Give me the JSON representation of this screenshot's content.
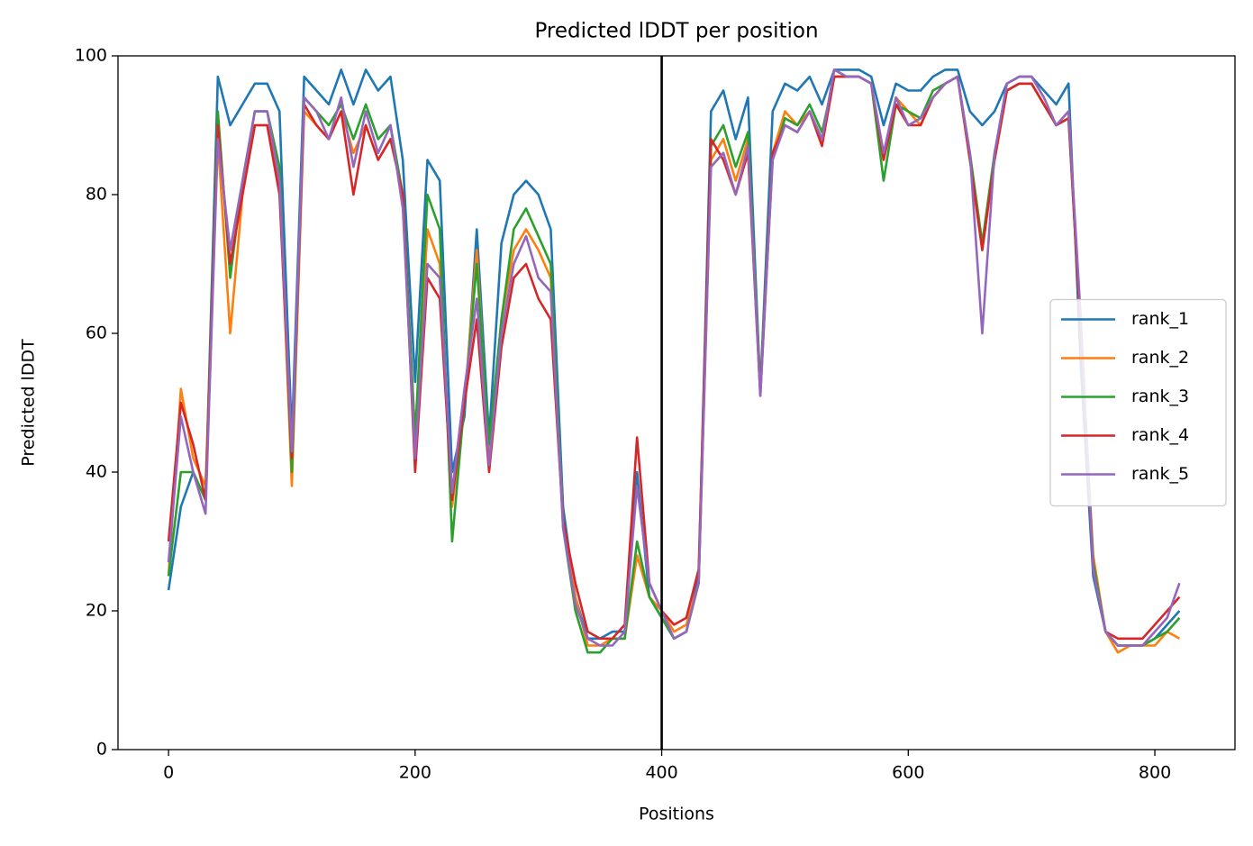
{
  "chart_data": {
    "type": "line",
    "title": "Predicted lDDT per position",
    "x_label": "Positions",
    "y_label": "Predicted lDDT",
    "x": [
      0,
      10,
      20,
      30,
      40,
      50,
      60,
      70,
      80,
      90,
      100,
      110,
      120,
      130,
      140,
      150,
      160,
      170,
      180,
      190,
      200,
      210,
      220,
      230,
      240,
      250,
      260,
      270,
      280,
      290,
      300,
      310,
      320,
      330,
      340,
      350,
      360,
      370,
      380,
      390,
      400,
      410,
      420,
      430,
      440,
      450,
      460,
      470,
      480,
      490,
      500,
      510,
      520,
      530,
      540,
      550,
      560,
      570,
      580,
      590,
      600,
      610,
      620,
      630,
      640,
      650,
      660,
      670,
      680,
      690,
      700,
      710,
      720,
      730,
      740,
      750,
      760,
      770,
      780,
      790,
      800,
      810,
      820
    ],
    "series": [
      {
        "name": "rank_1",
        "color": "#1f77b4",
        "values": [
          23,
          35,
          40,
          36,
          97,
          90,
          93,
          96,
          96,
          92,
          45,
          97,
          95,
          93,
          98,
          93,
          98,
          95,
          97,
          85,
          53,
          85,
          82,
          40,
          48,
          75,
          45,
          73,
          80,
          82,
          80,
          75,
          35,
          22,
          16,
          16,
          17,
          17,
          40,
          22,
          19,
          16,
          17,
          25,
          92,
          95,
          88,
          94,
          52,
          92,
          96,
          95,
          97,
          93,
          98,
          98,
          98,
          97,
          90,
          96,
          95,
          95,
          97,
          98,
          98,
          92,
          90,
          92,
          96,
          97,
          97,
          95,
          93,
          96,
          55,
          25,
          17,
          15,
          15,
          15,
          16,
          18,
          20
        ]
      },
      {
        "name": "rank_2",
        "color": "#ff7f0e",
        "values": [
          25,
          52,
          42,
          38,
          88,
          60,
          80,
          90,
          90,
          82,
          38,
          92,
          90,
          88,
          92,
          86,
          90,
          85,
          88,
          80,
          45,
          75,
          70,
          35,
          50,
          72,
          42,
          62,
          72,
          75,
          72,
          68,
          33,
          22,
          15,
          15,
          16,
          16,
          28,
          22,
          20,
          17,
          18,
          24,
          85,
          88,
          82,
          88,
          52,
          86,
          92,
          90,
          92,
          88,
          98,
          97,
          97,
          96,
          85,
          94,
          92,
          90,
          94,
          96,
          97,
          85,
          72,
          85,
          95,
          96,
          96,
          93,
          90,
          92,
          60,
          28,
          17,
          14,
          15,
          15,
          15,
          17,
          16
        ]
      },
      {
        "name": "rank_3",
        "color": "#2ca02c",
        "values": [
          25,
          40,
          40,
          36,
          92,
          68,
          82,
          92,
          92,
          84,
          40,
          94,
          92,
          90,
          93,
          88,
          93,
          88,
          90,
          80,
          45,
          80,
          75,
          30,
          50,
          70,
          44,
          62,
          75,
          78,
          74,
          70,
          32,
          20,
          14,
          14,
          16,
          16,
          30,
          22,
          19,
          16,
          17,
          24,
          87,
          90,
          84,
          89,
          52,
          85,
          91,
          90,
          93,
          89,
          97,
          97,
          97,
          96,
          82,
          93,
          92,
          91,
          95,
          96,
          97,
          86,
          73,
          86,
          95,
          96,
          96,
          93,
          90,
          91,
          60,
          27,
          17,
          15,
          15,
          15,
          16,
          17,
          19
        ]
      },
      {
        "name": "rank_4",
        "color": "#d62728",
        "values": [
          30,
          50,
          44,
          36,
          90,
          70,
          80,
          90,
          90,
          80,
          42,
          93,
          90,
          88,
          92,
          80,
          90,
          85,
          88,
          80,
          40,
          68,
          65,
          36,
          50,
          62,
          40,
          58,
          68,
          70,
          65,
          62,
          33,
          24,
          17,
          16,
          16,
          18,
          45,
          24,
          20,
          18,
          19,
          26,
          88,
          85,
          80,
          86,
          51,
          86,
          90,
          89,
          92,
          87,
          97,
          97,
          97,
          96,
          85,
          93,
          90,
          90,
          94,
          96,
          97,
          85,
          72,
          85,
          95,
          96,
          96,
          93,
          90,
          91,
          60,
          26,
          17,
          16,
          16,
          16,
          18,
          20,
          22
        ]
      },
      {
        "name": "rank_5",
        "color": "#9467bd",
        "values": [
          27,
          48,
          40,
          34,
          88,
          72,
          82,
          92,
          92,
          82,
          43,
          94,
          92,
          88,
          94,
          84,
          92,
          86,
          90,
          78,
          42,
          70,
          68,
          37,
          52,
          65,
          41,
          60,
          70,
          74,
          68,
          66,
          32,
          21,
          16,
          15,
          15,
          17,
          38,
          24,
          20,
          16,
          17,
          24,
          84,
          86,
          80,
          87,
          51,
          85,
          90,
          89,
          92,
          88,
          98,
          97,
          97,
          96,
          86,
          94,
          90,
          91,
          94,
          96,
          97,
          86,
          60,
          86,
          96,
          97,
          97,
          94,
          90,
          92,
          62,
          26,
          17,
          15,
          15,
          15,
          17,
          19,
          24
        ]
      }
    ],
    "vlines": [
      400
    ],
    "vline_color": "#000000",
    "xlim": [
      -41,
      865
    ],
    "xticks": [
      0,
      200,
      400,
      600,
      800
    ],
    "ylim": [
      0,
      100
    ],
    "yticks": [
      0,
      20,
      40,
      60,
      80,
      100
    ],
    "grid": false,
    "legend": "center right"
  }
}
